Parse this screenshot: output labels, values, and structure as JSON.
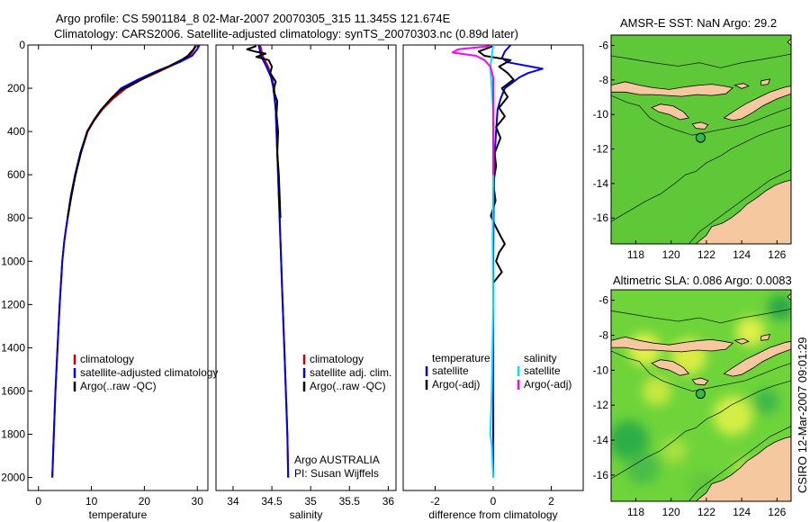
{
  "header": {
    "line1": "Argo profile: CS 5901184_8 02-Mar-2007 20070305_315 11.345S 121.674E",
    "line2": "Climatology: CARS2006. Satellite-adjusted climatology: synTS_20070303.nc (0.89d later)"
  },
  "colors": {
    "climatology": "#cc0000",
    "satellite": "#0000ee",
    "argo": "#000000",
    "sat_cyan": "#00e0ff",
    "argo_magenta": "#ff00ff"
  },
  "chart_data": [
    {
      "type": "line",
      "id": "temperature",
      "xlabel": "temperature",
      "xlim": [
        -2,
        32
      ],
      "ylim": [
        0,
        2060
      ],
      "xticks": [
        0,
        10,
        20,
        30
      ],
      "yticks": [
        0,
        200,
        400,
        600,
        800,
        1000,
        1200,
        1400,
        1600,
        1800,
        2000
      ],
      "y_reversed": true,
      "legend": [
        "climatology",
        "satellite-adjusted climatology",
        "Argo(..raw -QC)"
      ],
      "series": [
        {
          "name": "climatology",
          "color": "#cc0000",
          "points": [
            [
              29.8,
              0
            ],
            [
              29.4,
              20
            ],
            [
              28.6,
              50
            ],
            [
              26.5,
              80
            ],
            [
              23,
              120
            ],
            [
              19.5,
              160
            ],
            [
              16.5,
              200
            ],
            [
              14,
              250
            ],
            [
              12,
              300
            ],
            [
              10.5,
              350
            ],
            [
              9.3,
              400
            ],
            [
              8,
              500
            ],
            [
              7,
              600
            ],
            [
              6.2,
              700
            ],
            [
              5.5,
              800
            ],
            [
              4.9,
              900
            ],
            [
              4.5,
              1000
            ],
            [
              4,
              1200
            ],
            [
              3.6,
              1400
            ],
            [
              3.2,
              1600
            ],
            [
              2.9,
              1800
            ],
            [
              2.6,
              2000
            ]
          ]
        },
        {
          "name": "satellite-adjusted climatology",
          "color": "#0000ee",
          "points": [
            [
              30.4,
              0
            ],
            [
              30,
              20
            ],
            [
              29,
              50
            ],
            [
              26.6,
              80
            ],
            [
              22.4,
              120
            ],
            [
              18.8,
              160
            ],
            [
              15.6,
              200
            ],
            [
              13.6,
              250
            ],
            [
              11.8,
              300
            ],
            [
              10.4,
              350
            ],
            [
              9.2,
              400
            ],
            [
              7.9,
              500
            ],
            [
              6.9,
              600
            ],
            [
              6.1,
              700
            ],
            [
              5.5,
              800
            ],
            [
              4.9,
              900
            ],
            [
              4.5,
              1000
            ],
            [
              4,
              1200
            ],
            [
              3.6,
              1400
            ],
            [
              3.2,
              1600
            ],
            [
              2.9,
              1800
            ],
            [
              2.6,
              2000
            ]
          ]
        },
        {
          "name": "Argo(..raw -QC)",
          "color": "#000000",
          "points": [
            [
              29.6,
              5
            ],
            [
              29.3,
              20
            ],
            [
              28.2,
              50
            ],
            [
              27.3,
              65
            ],
            [
              24.5,
              100
            ],
            [
              21,
              140
            ],
            [
              17.8,
              180
            ],
            [
              15.5,
              210
            ],
            [
              13.6,
              250
            ],
            [
              11.8,
              300
            ],
            [
              10.4,
              350
            ],
            [
              9.2,
              400
            ],
            [
              8,
              500
            ],
            [
              7,
              600
            ],
            [
              6.2,
              700
            ],
            [
              5.5,
              800
            ]
          ]
        }
      ]
    },
    {
      "type": "line",
      "id": "salinity",
      "xlabel": "salinity",
      "xlim": [
        33.78,
        36.1
      ],
      "ylim": [
        0,
        2060
      ],
      "xticks": [
        34,
        34.5,
        35,
        35.5,
        36
      ],
      "yticks": [],
      "y_reversed": true,
      "legend": [
        "climatology",
        "satellite adj. clim.",
        "Argo(..raw -QC)"
      ],
      "annotation": [
        "Argo AUSTRALIA",
        "PI: Susan Wijffels"
      ],
      "series": [
        {
          "name": "climatology",
          "color": "#cc0000",
          "points": [
            [
              34.35,
              0
            ],
            [
              34.38,
              50
            ],
            [
              34.45,
              100
            ],
            [
              34.5,
              150
            ],
            [
              34.53,
              200
            ],
            [
              34.55,
              300
            ],
            [
              34.56,
              400
            ],
            [
              34.57,
              500
            ],
            [
              34.58,
              600
            ],
            [
              34.59,
              700
            ],
            [
              34.6,
              800
            ],
            [
              34.62,
              1000
            ],
            [
              34.64,
              1200
            ],
            [
              34.66,
              1400
            ],
            [
              34.68,
              1600
            ],
            [
              34.7,
              1800
            ],
            [
              34.71,
              2000
            ]
          ]
        },
        {
          "name": "satellite adj. clim.",
          "color": "#0000ee",
          "points": [
            [
              34.33,
              0
            ],
            [
              34.36,
              50
            ],
            [
              34.43,
              100
            ],
            [
              34.49,
              150
            ],
            [
              34.52,
              200
            ],
            [
              34.55,
              300
            ],
            [
              34.56,
              400
            ],
            [
              34.57,
              500
            ],
            [
              34.58,
              600
            ],
            [
              34.59,
              700
            ],
            [
              34.6,
              800
            ],
            [
              34.62,
              1000
            ],
            [
              34.64,
              1200
            ],
            [
              34.66,
              1400
            ],
            [
              34.68,
              1600
            ],
            [
              34.7,
              1800
            ],
            [
              34.71,
              2000
            ]
          ]
        },
        {
          "name": "Argo(..raw -QC)",
          "color": "#000000",
          "points": [
            [
              34.3,
              5
            ],
            [
              34.18,
              20
            ],
            [
              34.28,
              30
            ],
            [
              34.42,
              40
            ],
            [
              34.3,
              55
            ],
            [
              34.46,
              70
            ],
            [
              34.5,
              100
            ],
            [
              34.48,
              130
            ],
            [
              34.55,
              170
            ],
            [
              34.52,
              210
            ],
            [
              34.57,
              260
            ],
            [
              34.56,
              320
            ],
            [
              34.58,
              400
            ],
            [
              34.57,
              500
            ],
            [
              34.59,
              600
            ],
            [
              34.6,
              700
            ],
            [
              34.61,
              800
            ]
          ]
        }
      ]
    },
    {
      "type": "line",
      "id": "difference",
      "xlabel": "difference from climatology",
      "xlim": [
        -3.1,
        3.1
      ],
      "ylim": [
        0,
        2060
      ],
      "xticks": [
        -2,
        0,
        2
      ],
      "yticks": [],
      "y_reversed": true,
      "legend_left_title": "temperature",
      "legend_right_title": "salinity",
      "legend_left": [
        "satellite",
        "Argo(-adj)"
      ],
      "legend_right": [
        "satellite",
        "Argo(-adj)"
      ],
      "series": [
        {
          "name": "temperature satellite",
          "color": "#0000ee",
          "points": [
            [
              0.6,
              0
            ],
            [
              0.4,
              30
            ],
            [
              0.3,
              60
            ],
            [
              0.5,
              80
            ],
            [
              1.7,
              110
            ],
            [
              1.2,
              130
            ],
            [
              0.9,
              150
            ],
            [
              0.6,
              180
            ],
            [
              0.4,
              200
            ],
            [
              0.25,
              250
            ],
            [
              0.15,
              300
            ],
            [
              0.1,
              400
            ],
            [
              0.05,
              500
            ],
            [
              0.02,
              700
            ],
            [
              0,
              1000
            ],
            [
              0,
              2000
            ]
          ]
        },
        {
          "name": "temperature Argo(-adj)",
          "color": "#000000",
          "points": [
            [
              0,
              5
            ],
            [
              -0.5,
              30
            ],
            [
              -0.3,
              50
            ],
            [
              0.6,
              70
            ],
            [
              0.2,
              100
            ],
            [
              0.5,
              130
            ],
            [
              0.7,
              160
            ],
            [
              0.3,
              200
            ],
            [
              0.5,
              240
            ],
            [
              0.2,
              290
            ],
            [
              0.4,
              330
            ],
            [
              0.1,
              380
            ],
            [
              0.25,
              430
            ],
            [
              0.05,
              500
            ],
            [
              0.1,
              560
            ],
            [
              0.0,
              640
            ],
            [
              0.08,
              720
            ],
            [
              -0.08,
              790
            ],
            [
              0.05,
              830
            ],
            [
              0.2,
              870
            ],
            [
              0.4,
              920
            ],
            [
              0.2,
              960
            ],
            [
              0.1,
              1000
            ],
            [
              0.3,
              1050
            ],
            [
              0.0,
              1100
            ]
          ]
        },
        {
          "name": "salinity satellite",
          "color": "#00e0ff",
          "points": [
            [
              0,
              0
            ],
            [
              -0.05,
              50
            ],
            [
              -0.1,
              100
            ],
            [
              -0.05,
              200
            ],
            [
              0,
              300
            ],
            [
              0,
              600
            ],
            [
              -0.02,
              900
            ],
            [
              0,
              1200
            ],
            [
              -0.05,
              1600
            ],
            [
              -0.1,
              1800
            ],
            [
              -0.05,
              1850
            ],
            [
              0,
              2000
            ]
          ]
        },
        {
          "name": "salinity Argo(-adj)",
          "color": "#ff00ff",
          "points": [
            [
              -0.1,
              5
            ],
            [
              -1.2,
              20
            ],
            [
              -1.4,
              35
            ],
            [
              -0.6,
              50
            ],
            [
              -0.3,
              70
            ],
            [
              -0.1,
              100
            ],
            [
              0,
              150
            ],
            [
              0,
              200
            ],
            [
              0,
              600
            ]
          ]
        }
      ]
    },
    {
      "type": "heatmap",
      "id": "amsr",
      "title": "AMSR-E SST: NaN  Argo: 29.2",
      "xlim": [
        116.6,
        126.8
      ],
      "ylim": [
        -17.5,
        -5.4
      ],
      "xticks": [
        118,
        120,
        122,
        124,
        126
      ],
      "yticks": [
        -6,
        -8,
        -10,
        -12,
        -14,
        -16
      ],
      "marker": [
        121.67,
        -11.35
      ]
    },
    {
      "type": "heatmap",
      "id": "altimetry",
      "title": "Altimetric SLA: 0.086  Argo: 0.0083",
      "xlim": [
        116.6,
        126.8
      ],
      "ylim": [
        -17.5,
        -5.4
      ],
      "xticks": [
        118,
        120,
        122,
        124,
        126
      ],
      "yticks": [
        -6,
        -8,
        -10,
        -12,
        -14,
        -16
      ],
      "marker": [
        121.67,
        -11.35
      ]
    }
  ],
  "footer": {
    "credit": "CSIRO 12-Mar-2007 09:01:29"
  }
}
